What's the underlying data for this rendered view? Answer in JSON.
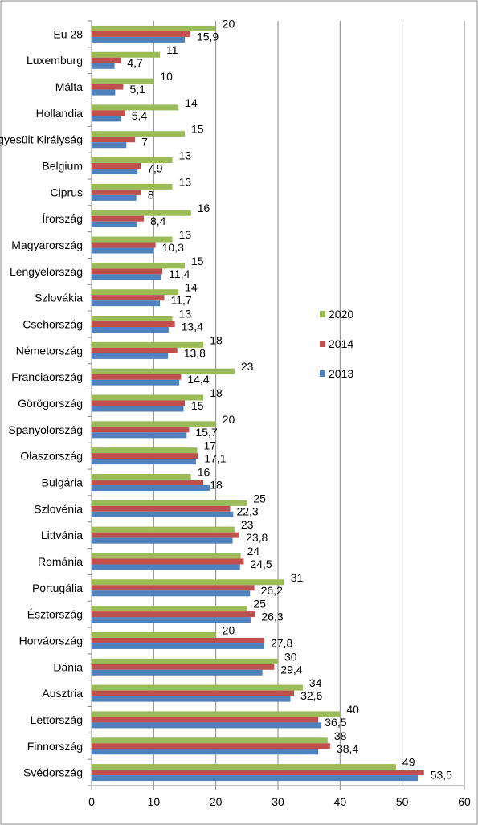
{
  "chart_data": {
    "type": "bar",
    "orientation": "horizontal",
    "categories": [
      "Eu 28",
      "Luxemburg",
      "Málta",
      "Hollandia",
      "Egyesült Királyság",
      "Belgium",
      "Ciprus",
      "Írország",
      "Magyarország",
      "Lengyelország",
      "Szlovákia",
      "Csehország",
      "Németország",
      "Franciaország",
      "Görögország",
      "Spanyolország",
      "Olaszország",
      "Bulgária",
      "Szlovénia",
      "Littvánia",
      "Románia",
      "Portugália",
      "Észtország",
      "Horváország",
      "Dánia",
      "Ausztria",
      "Lettország",
      "Finnország",
      "Svédország"
    ],
    "series": [
      {
        "name": "2020",
        "color": "#9bbb59",
        "values": [
          20,
          11,
          10,
          14,
          15,
          13,
          13,
          16,
          13,
          15,
          14,
          13,
          18,
          23,
          18,
          20,
          17,
          16,
          25,
          23,
          24,
          31,
          25,
          20,
          30,
          34,
          40,
          38,
          49
        ]
      },
      {
        "name": "2014",
        "color": "#c0504d",
        "values": [
          15.9,
          4.7,
          5.1,
          5.4,
          7,
          7.9,
          8,
          8.4,
          10.3,
          11.4,
          11.7,
          13.4,
          13.8,
          14.4,
          15,
          15.7,
          17.1,
          18,
          22.3,
          23.8,
          24.5,
          26.2,
          26.3,
          27.8,
          29.4,
          32.6,
          36.5,
          38.4,
          53.5
        ]
      },
      {
        "name": "2013",
        "color": "#4f81bd",
        "values": [
          15,
          3.7,
          3.8,
          4.7,
          5.6,
          7.4,
          7.2,
          7.3,
          10,
          11.2,
          11,
          12.4,
          12.3,
          14.1,
          14.8,
          15.3,
          16.8,
          19,
          22.8,
          22.7,
          23.9,
          25.5,
          25.6,
          27.8,
          27.5,
          32,
          37,
          36.5,
          52.5
        ]
      }
    ],
    "data_labels": [
      {
        "series": "2020",
        "labels": [
          "20",
          "11",
          "10",
          "14",
          "15",
          "13",
          "13",
          "16",
          "13",
          "15",
          "14",
          "13",
          "18",
          "23",
          "18",
          "20",
          "17",
          "16",
          "25",
          "23",
          "24",
          "31",
          "25",
          "20",
          "30",
          "34",
          "40",
          "38",
          "49"
        ]
      },
      {
        "series": "2014",
        "labels": [
          "15,9",
          "4,7",
          "5,1",
          "5,4",
          "7",
          "7,9",
          "8",
          "8,4",
          "10,3",
          "11,4",
          "11,7",
          "13,4",
          "13,8",
          "14,4",
          "15",
          "15,7",
          "17,1",
          "18",
          "22,3",
          "23,8",
          "24,5",
          "26,2",
          "26,3",
          "27,8",
          "29,4",
          "32,6",
          "36,5",
          "38,4",
          "53,5"
        ]
      }
    ],
    "x_ticks": [
      "0",
      "10",
      "20",
      "30",
      "40",
      "50",
      "60"
    ],
    "xlim": [
      0,
      60
    ],
    "grid": true,
    "legend": {
      "placement": "right",
      "items": [
        "2020",
        "2014",
        "2013"
      ]
    },
    "title": "",
    "xlabel": "",
    "ylabel": ""
  }
}
